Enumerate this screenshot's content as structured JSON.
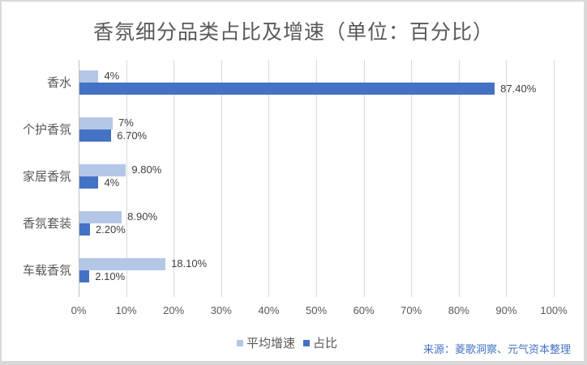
{
  "title": "香氛细分品类占比及增速（单位：百分比）",
  "colors": {
    "growth": "#b4c7e7",
    "share": "#4472c4"
  },
  "legend": {
    "growth": "平均增速",
    "share": "占比"
  },
  "source": "来源：菱歌洞察、元气资本整理",
  "ticks": [
    "0%",
    "10%",
    "20%",
    "30%",
    "40%",
    "50%",
    "60%",
    "70%",
    "80%",
    "90%",
    "100%"
  ],
  "categories": [
    {
      "name": "香水",
      "growth": 4,
      "growth_label": "4%",
      "share": 87.4,
      "share_label": "87.40%"
    },
    {
      "name": "个护香氛",
      "growth": 7,
      "growth_label": "7%",
      "share": 6.7,
      "share_label": "6.70%"
    },
    {
      "name": "家居香氛",
      "growth": 9.8,
      "growth_label": "9.80%",
      "share": 4,
      "share_label": "4%"
    },
    {
      "name": "香氛套装",
      "growth": 8.9,
      "growth_label": "8.90%",
      "share": 2.2,
      "share_label": "2.20%"
    },
    {
      "name": "车载香氛",
      "growth": 18.1,
      "growth_label": "18.10%",
      "share": 2.1,
      "share_label": "2.10%"
    }
  ],
  "chart_data": {
    "type": "bar",
    "orientation": "horizontal",
    "title": "香氛细分品类占比及增速（单位：百分比）",
    "categories": [
      "香水",
      "个护香氛",
      "家居香氛",
      "香氛套装",
      "车载香氛"
    ],
    "series": [
      {
        "name": "平均增速",
        "values": [
          4,
          7,
          9.8,
          8.9,
          18.1
        ],
        "labels": [
          "4%",
          "7%",
          "9.80%",
          "8.90%",
          "18.10%"
        ]
      },
      {
        "name": "占比",
        "values": [
          87.4,
          6.7,
          4,
          2.2,
          2.1
        ],
        "labels": [
          "87.40%",
          "6.70%",
          "4%",
          "2.20%",
          "2.10%"
        ]
      }
    ],
    "xlabel": "",
    "ylabel": "",
    "xlim": [
      0,
      100
    ],
    "xticks": [
      "0%",
      "10%",
      "20%",
      "30%",
      "40%",
      "50%",
      "60%",
      "70%",
      "80%",
      "90%",
      "100%"
    ],
    "grid": "vertical",
    "legend_position": "bottom",
    "annotation": "来源：菱歌洞察、元气资本整理"
  }
}
